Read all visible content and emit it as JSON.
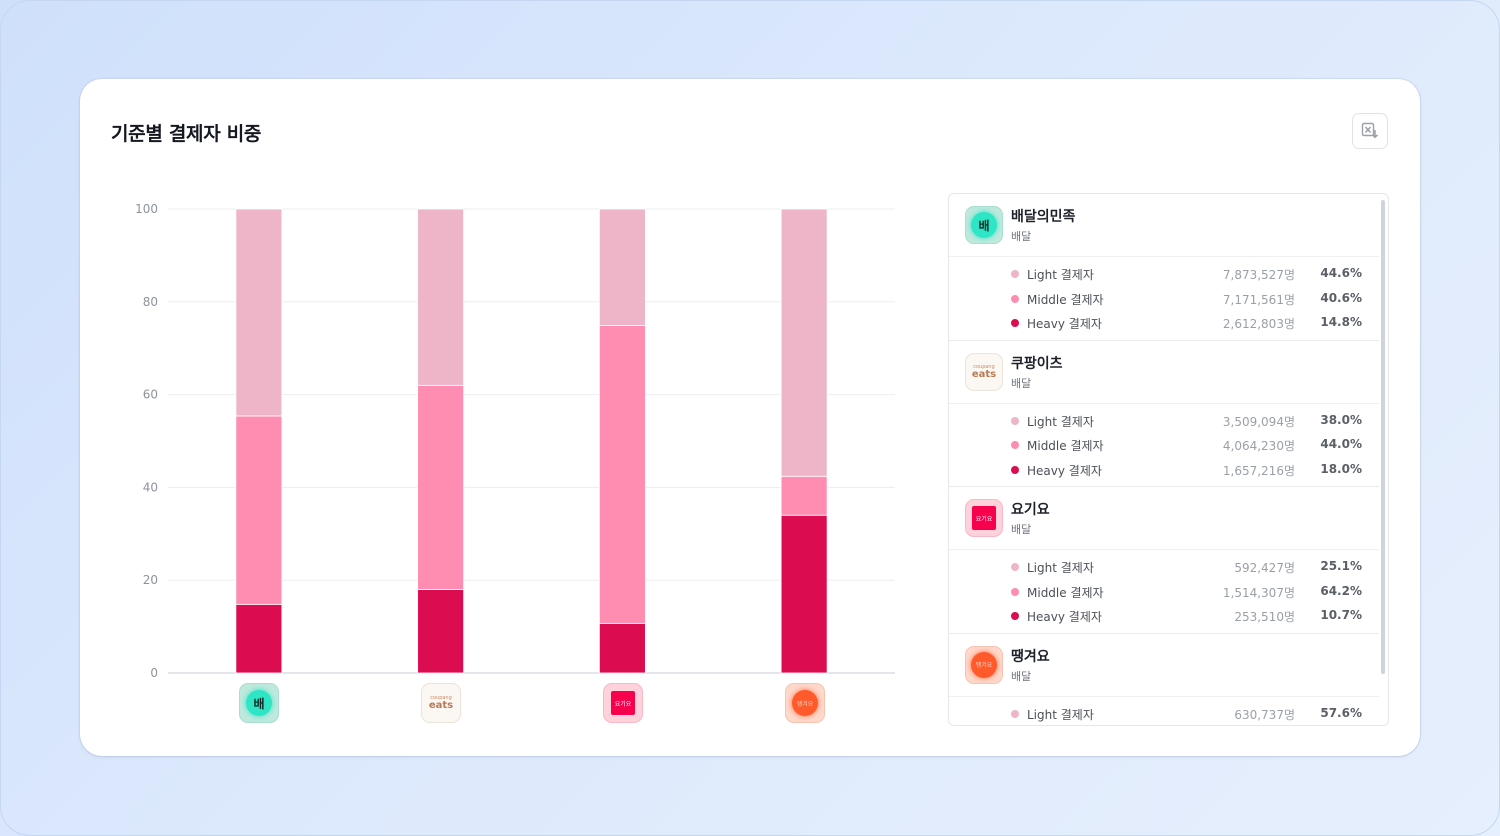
{
  "title": "기준별 결제자 비중",
  "excel_button_label": "",
  "colors": {
    "light": "#eeb5c9",
    "middle": "#fe8db1",
    "heavy": "#dc0c50"
  },
  "chart_data": {
    "type": "bar",
    "stacked": true,
    "categories": [
      "배달의민족",
      "쿠팡이츠",
      "요기요",
      "땡겨요"
    ],
    "series": [
      {
        "name": "Heavy 결제자",
        "values": [
          14.8,
          18.0,
          10.7,
          34.0
        ]
      },
      {
        "name": "Middle 결제자",
        "values": [
          40.6,
          44.0,
          64.2,
          8.4
        ]
      },
      {
        "name": "Light 결제자",
        "values": [
          44.6,
          38.0,
          25.1,
          57.6
        ]
      }
    ],
    "yticks": [
      0,
      20,
      40,
      60,
      80,
      100
    ],
    "ylim": [
      0,
      100
    ],
    "grid": true
  },
  "apps": [
    {
      "name": "배달의민족",
      "category": "배달",
      "logo": "baemin",
      "rows": [
        {
          "level": "light",
          "label": "Light 결제자",
          "count": "7,873,527명",
          "pct": "44.6%"
        },
        {
          "level": "middle",
          "label": "Middle 결제자",
          "count": "7,171,561명",
          "pct": "40.6%"
        },
        {
          "level": "heavy",
          "label": "Heavy 결제자",
          "count": "2,612,803명",
          "pct": "14.8%"
        }
      ]
    },
    {
      "name": "쿠팡이츠",
      "category": "배달",
      "logo": "coupang",
      "rows": [
        {
          "level": "light",
          "label": "Light 결제자",
          "count": "3,509,094명",
          "pct": "38.0%"
        },
        {
          "level": "middle",
          "label": "Middle 결제자",
          "count": "4,064,230명",
          "pct": "44.0%"
        },
        {
          "level": "heavy",
          "label": "Heavy 결제자",
          "count": "1,657,216명",
          "pct": "18.0%"
        }
      ]
    },
    {
      "name": "요기요",
      "category": "배달",
      "logo": "yogiyo",
      "rows": [
        {
          "level": "light",
          "label": "Light 결제자",
          "count": "592,427명",
          "pct": "25.1%"
        },
        {
          "level": "middle",
          "label": "Middle 결제자",
          "count": "1,514,307명",
          "pct": "64.2%"
        },
        {
          "level": "heavy",
          "label": "Heavy 결제자",
          "count": "253,510명",
          "pct": "10.7%"
        }
      ]
    },
    {
      "name": "땡겨요",
      "category": "배달",
      "logo": "ddang",
      "rows": [
        {
          "level": "light",
          "label": "Light 결제자",
          "count": "630,737명",
          "pct": "57.6%"
        }
      ]
    }
  ],
  "logo_text": {
    "baemin": "배",
    "coupang_small": "coupang",
    "coupang_big": "eats",
    "yogiyo": "요기요",
    "ddang": "땡겨요"
  }
}
